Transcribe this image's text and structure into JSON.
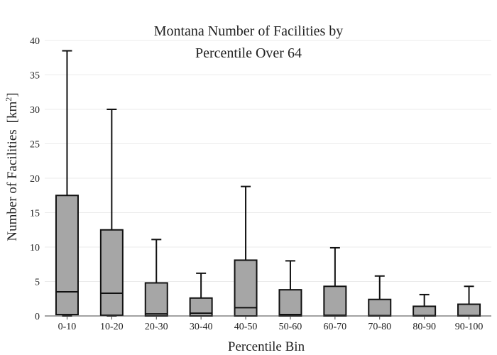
{
  "chart_data": {
    "type": "box",
    "title_lines": [
      "Montana Number of Facilities by",
      "Percentile Over 64"
    ],
    "xlabel": "Percentile Bin",
    "ylabel": "Number of Facilities",
    "ylabel_unit": "[km",
    "ylabel_unit_sup": "2",
    "ylabel_unit_close": "]",
    "ylim": [
      0,
      40
    ],
    "yticks": [
      0,
      5,
      10,
      15,
      20,
      25,
      30,
      35,
      40
    ],
    "grid": true,
    "box_color": "#a6a6a6",
    "categories": [
      "0-10",
      "10-20",
      "20-30",
      "30-40",
      "40-50",
      "50-60",
      "60-70",
      "70-80",
      "80-90",
      "90-100"
    ],
    "boxes": [
      {
        "min": 0.0,
        "q1": 0.2,
        "median": 3.5,
        "q3": 17.5,
        "max": 38.5
      },
      {
        "min": 0.0,
        "q1": 0.1,
        "median": 3.3,
        "q3": 12.5,
        "max": 30.0
      },
      {
        "min": 0.0,
        "q1": 0.0,
        "median": 0.3,
        "q3": 4.8,
        "max": 11.1
      },
      {
        "min": 0.0,
        "q1": 0.0,
        "median": 0.4,
        "q3": 2.6,
        "max": 6.2
      },
      {
        "min": 0.0,
        "q1": 0.0,
        "median": 1.2,
        "q3": 8.1,
        "max": 18.8
      },
      {
        "min": 0.0,
        "q1": 0.0,
        "median": 0.2,
        "q3": 3.8,
        "max": 8.0
      },
      {
        "min": 0.0,
        "q1": 0.0,
        "median": 0.1,
        "q3": 4.3,
        "max": 9.9
      },
      {
        "min": 0.0,
        "q1": 0.0,
        "median": 0.05,
        "q3": 2.4,
        "max": 5.8
      },
      {
        "min": 0.0,
        "q1": 0.0,
        "median": 0.05,
        "q3": 1.4,
        "max": 3.1
      },
      {
        "min": 0.0,
        "q1": 0.0,
        "median": 0.05,
        "q3": 1.7,
        "max": 4.3
      }
    ]
  }
}
